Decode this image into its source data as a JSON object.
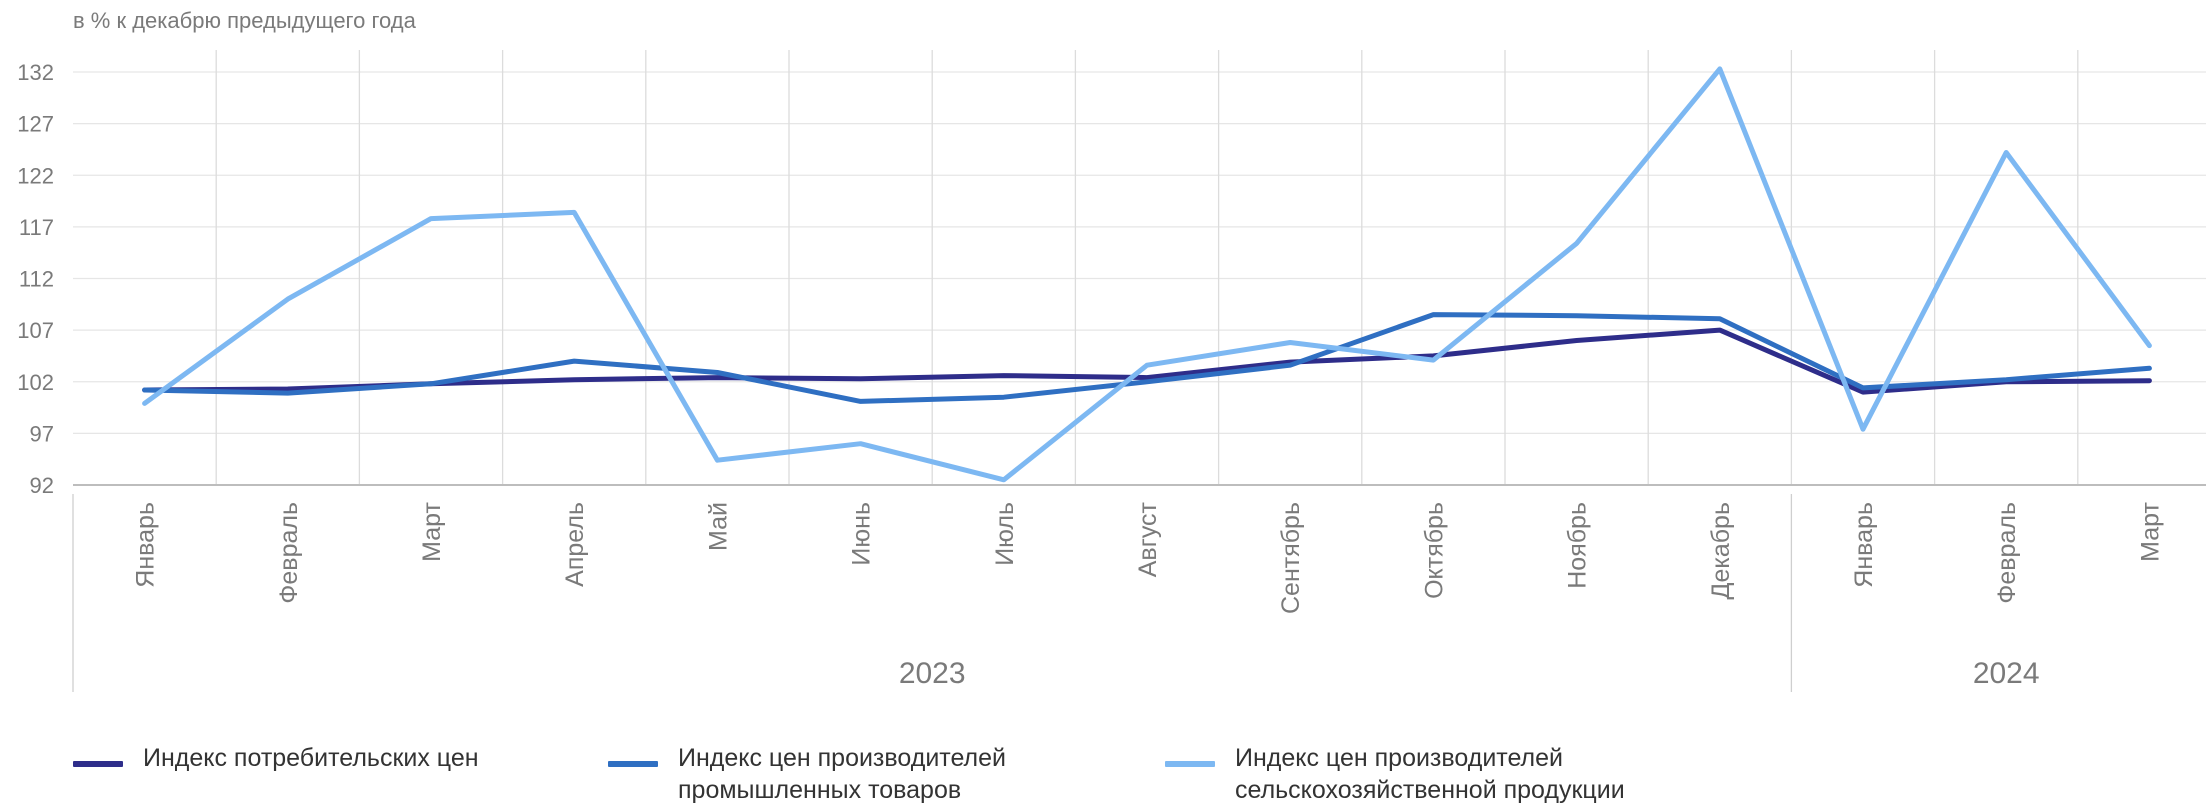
{
  "unit_label": "в % к декабрю предыдущего года",
  "colors": {
    "cpi": "#2e2d8a",
    "ppi_industry": "#2f6fc2",
    "ppi_agri": "#7db8f2",
    "grid": "#e6e6e6",
    "text": "#7a7a7a"
  },
  "chart_data": {
    "type": "line",
    "title": "",
    "ylabel": "в % к декабрю предыдущего года",
    "xlabel": "",
    "ylim": [
      92,
      132
    ],
    "yticks": [
      92,
      97,
      102,
      107,
      112,
      117,
      122,
      127,
      132
    ],
    "categories": [
      "Январь",
      "Февраль",
      "Март",
      "Апрель",
      "Май",
      "Июнь",
      "Июль",
      "Август",
      "Сентябрь",
      "Октябрь",
      "Ноябрь",
      "Декабрь",
      "Январь",
      "Февраль",
      "Март"
    ],
    "year_groups": [
      {
        "label": "2023",
        "count": 12
      },
      {
        "label": "2024",
        "count": 3
      }
    ],
    "grid": true,
    "legend_position": "bottom",
    "series": [
      {
        "name": "Индекс потребительских цен",
        "color_key": "cpi",
        "values": [
          101.2,
          101.3,
          101.8,
          102.2,
          102.4,
          102.3,
          102.6,
          102.4,
          103.9,
          104.5,
          106.0,
          107.0,
          101.0,
          102.0,
          102.1
        ]
      },
      {
        "name": "Индекс цен производителей\nпромышленных товаров",
        "color_key": "ppi_industry",
        "values": [
          101.2,
          100.9,
          101.8,
          104.0,
          102.9,
          100.1,
          100.5,
          102.0,
          103.6,
          108.5,
          108.4,
          108.1,
          101.4,
          102.2,
          103.3
        ]
      },
      {
        "name": "Индекс цен производителей\nсельскохозяйственной продукции",
        "color_key": "ppi_agri",
        "values": [
          99.9,
          110.0,
          117.8,
          118.4,
          94.4,
          96.0,
          92.5,
          103.6,
          105.8,
          104.1,
          115.4,
          132.3,
          97.4,
          124.2,
          105.5
        ]
      }
    ]
  }
}
